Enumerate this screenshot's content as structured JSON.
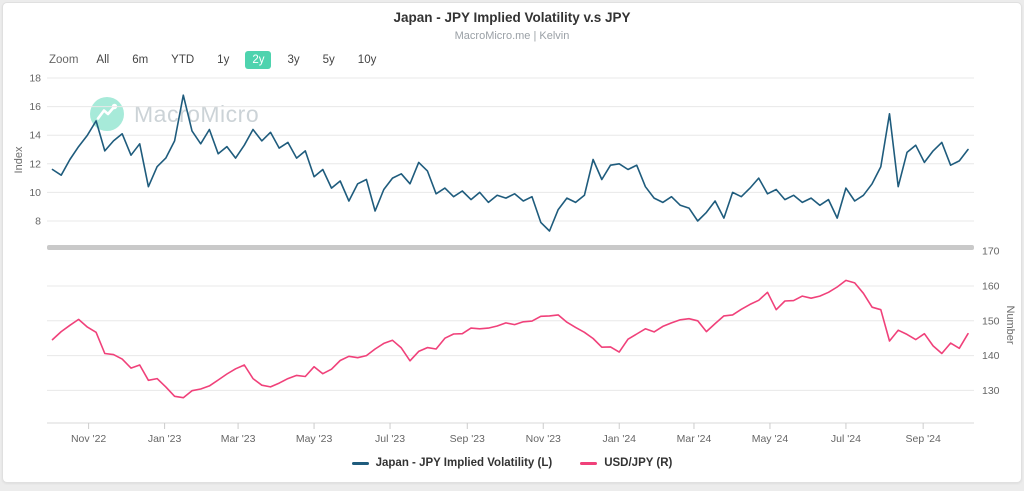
{
  "header": {
    "title": "Japan - JPY Implied Volatility v.s JPY",
    "subtitle": "MacroMicro.me | Kelvin"
  },
  "toolbar": {
    "label": "Zoom",
    "items": [
      {
        "label": "All",
        "active": false
      },
      {
        "label": "6m",
        "active": false
      },
      {
        "label": "YTD",
        "active": false
      },
      {
        "label": "1y",
        "active": false
      },
      {
        "label": "2y",
        "active": true
      },
      {
        "label": "3y",
        "active": false
      },
      {
        "label": "5y",
        "active": false
      },
      {
        "label": "10y",
        "active": false
      }
    ],
    "active_color": "#4ed3ae"
  },
  "watermark": {
    "text": "MacroMicro",
    "circle_color": "#5ed8ba"
  },
  "legend": [
    {
      "label": "Japan - JPY Implied Volatility (L)",
      "color": "#1f5c7d"
    },
    {
      "label": "USD/JPY (R)",
      "color": "#f0417a"
    }
  ],
  "colors": {
    "gridline": "#e8e8e8",
    "divider": "#c9c9c9",
    "axis_line": "#d8d8d8",
    "tick_mark": "#cccccc"
  },
  "chart_data": {
    "type": "line",
    "title": "Japan - JPY Implied Volatility v.s JPY",
    "subtitle": "MacroMicro.me | Kelvin",
    "x_range": [
      "2022-10-01",
      "2024-10-07"
    ],
    "x_ticks": [
      "2022-11-01",
      "2023-01-01",
      "2023-03-01",
      "2023-05-01",
      "2023-07-01",
      "2023-09-01",
      "2023-11-01",
      "2024-01-01",
      "2024-03-01",
      "2024-05-01",
      "2024-07-01",
      "2024-09-01"
    ],
    "x_tick_labels": [
      "Nov '22",
      "Jan '23",
      "Mar '23",
      "May '23",
      "Jul '23",
      "Sep '23",
      "Nov '23",
      "Jan '24",
      "Mar '24",
      "May '24",
      "Jul '24",
      "Sep '24"
    ],
    "dates": [
      "2022-10-03",
      "2022-10-10",
      "2022-10-17",
      "2022-10-24",
      "2022-10-31",
      "2022-11-07",
      "2022-11-14",
      "2022-11-21",
      "2022-11-28",
      "2022-12-05",
      "2022-12-12",
      "2022-12-19",
      "2022-12-26",
      "2023-01-02",
      "2023-01-09",
      "2023-01-16",
      "2023-01-23",
      "2023-01-30",
      "2023-02-06",
      "2023-02-13",
      "2023-02-20",
      "2023-02-27",
      "2023-03-06",
      "2023-03-13",
      "2023-03-20",
      "2023-03-27",
      "2023-04-03",
      "2023-04-10",
      "2023-04-17",
      "2023-04-24",
      "2023-05-01",
      "2023-05-08",
      "2023-05-15",
      "2023-05-22",
      "2023-05-29",
      "2023-06-05",
      "2023-06-12",
      "2023-06-19",
      "2023-06-26",
      "2023-07-03",
      "2023-07-10",
      "2023-07-17",
      "2023-07-24",
      "2023-07-31",
      "2023-08-07",
      "2023-08-14",
      "2023-08-21",
      "2023-08-28",
      "2023-09-04",
      "2023-09-11",
      "2023-09-18",
      "2023-09-25",
      "2023-10-02",
      "2023-10-09",
      "2023-10-16",
      "2023-10-23",
      "2023-10-30",
      "2023-11-06",
      "2023-11-13",
      "2023-11-20",
      "2023-11-27",
      "2023-12-04",
      "2023-12-11",
      "2023-12-18",
      "2023-12-25",
      "2024-01-01",
      "2024-01-08",
      "2024-01-15",
      "2024-01-22",
      "2024-01-29",
      "2024-02-05",
      "2024-02-12",
      "2024-02-19",
      "2024-02-26",
      "2024-03-04",
      "2024-03-11",
      "2024-03-18",
      "2024-03-25",
      "2024-04-01",
      "2024-04-08",
      "2024-04-15",
      "2024-04-22",
      "2024-04-29",
      "2024-05-06",
      "2024-05-13",
      "2024-05-20",
      "2024-05-27",
      "2024-06-03",
      "2024-06-10",
      "2024-06-17",
      "2024-06-24",
      "2024-07-01",
      "2024-07-08",
      "2024-07-15",
      "2024-07-22",
      "2024-07-29",
      "2024-08-05",
      "2024-08-12",
      "2024-08-19",
      "2024-08-26",
      "2024-09-02",
      "2024-09-09",
      "2024-09-16",
      "2024-09-23",
      "2024-09-30",
      "2024-10-07"
    ],
    "panels": [
      {
        "ylabel": "Index",
        "axis_side": "left",
        "yticks": [
          8,
          10,
          12,
          14,
          16,
          18
        ],
        "ylim": [
          6.8,
          18
        ],
        "series": {
          "name": "Japan - JPY Implied Volatility (L)",
          "color": "#1f5c7d",
          "values": [
            11.6,
            11.2,
            12.3,
            13.2,
            14.0,
            15.0,
            12.9,
            13.6,
            14.1,
            12.6,
            13.4,
            10.4,
            11.8,
            12.4,
            13.6,
            16.8,
            14.3,
            13.4,
            14.4,
            12.7,
            13.2,
            12.4,
            13.3,
            14.4,
            13.6,
            14.2,
            13.1,
            13.5,
            12.4,
            12.9,
            11.1,
            11.6,
            10.3,
            10.8,
            9.4,
            10.6,
            10.9,
            8.7,
            10.2,
            11.0,
            11.3,
            10.6,
            12.1,
            11.5,
            9.9,
            10.3,
            9.7,
            10.1,
            9.5,
            10.0,
            9.3,
            9.8,
            9.6,
            9.9,
            9.4,
            9.7,
            7.9,
            7.3,
            8.8,
            9.6,
            9.3,
            9.8,
            12.3,
            10.9,
            11.9,
            12.0,
            11.6,
            11.9,
            10.4,
            9.6,
            9.3,
            9.7,
            9.1,
            8.9,
            8.0,
            8.6,
            9.4,
            8.2,
            10.0,
            9.7,
            10.3,
            11.0,
            9.9,
            10.2,
            9.5,
            9.8,
            9.3,
            9.6,
            9.1,
            9.5,
            8.2,
            10.3,
            9.4,
            9.8,
            10.6,
            11.8,
            15.5,
            10.4,
            12.8,
            13.3,
            12.1,
            12.9,
            13.5,
            11.9,
            12.2,
            13.0
          ]
        }
      },
      {
        "ylabel": "Number",
        "axis_side": "right",
        "yticks": [
          130,
          140,
          150,
          160,
          170
        ],
        "ylim": [
          125,
          170
        ],
        "series": {
          "name": "USD/JPY (R)",
          "color": "#f0417a",
          "values": [
            144.6,
            146.9,
            148.7,
            150.4,
            148.2,
            146.7,
            140.6,
            140.3,
            139.0,
            136.4,
            137.3,
            132.9,
            133.4,
            131.0,
            128.3,
            127.9,
            129.9,
            130.4,
            131.3,
            133.0,
            134.7,
            136.2,
            137.3,
            133.4,
            131.5,
            131.0,
            132.1,
            133.4,
            134.3,
            134.0,
            136.8,
            134.8,
            136.1,
            138.6,
            139.8,
            139.4,
            140.0,
            141.9,
            143.5,
            144.4,
            142.2,
            138.5,
            141.2,
            142.3,
            141.9,
            145.0,
            146.2,
            146.3,
            147.9,
            147.7,
            147.9,
            148.5,
            149.4,
            148.9,
            149.7,
            149.9,
            151.3,
            151.4,
            151.7,
            149.6,
            148.1,
            146.7,
            144.9,
            142.4,
            142.5,
            141.0,
            144.7,
            146.2,
            147.7,
            146.8,
            148.4,
            149.4,
            150.3,
            150.6,
            150.0,
            146.9,
            149.2,
            151.4,
            151.7,
            153.3,
            154.7,
            155.9,
            158.2,
            153.2,
            155.7,
            155.8,
            157.1,
            156.5,
            157.1,
            158.2,
            159.7,
            161.6,
            160.9,
            157.9,
            153.9,
            153.2,
            144.2,
            147.3,
            146.1,
            144.6,
            146.3,
            142.8,
            140.6,
            143.6,
            142.1,
            146.3
          ]
        }
      }
    ],
    "legend_position": "bottom"
  }
}
